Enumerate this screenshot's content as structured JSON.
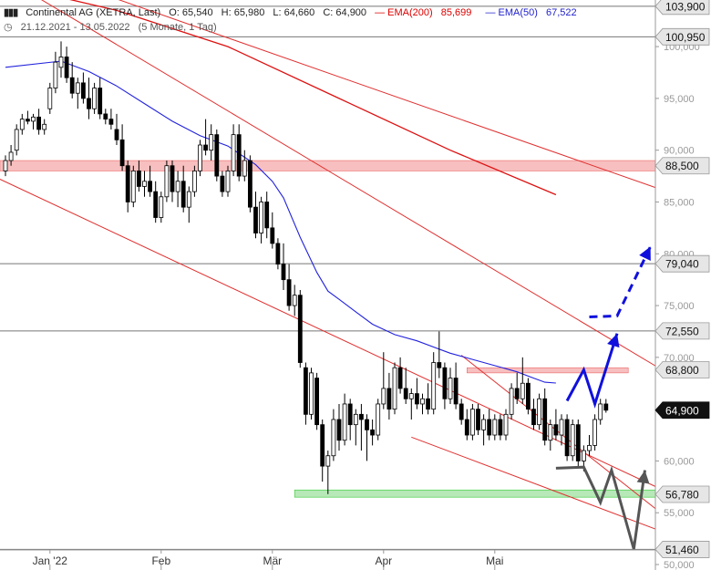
{
  "header": {
    "instrument": "Continental AG (XETRA, Last)",
    "open": "O: 65,540",
    "high": "H: 65,980",
    "low": "L: 64,660",
    "close": "C: 64,900",
    "ema200_label": "EMA(200)",
    "ema200_value": "85,699",
    "ema50_label": "EMA(50)",
    "ema50_value": "67,522",
    "date_range": "21.12.2021 - 13.05.2022",
    "period": "(5 Monate, 1 Tag)"
  },
  "colors": {
    "ema200": "#dd1111",
    "ema50": "#2222dd",
    "trendline": "#e03030",
    "resistance_zone": "#f4aaaa",
    "support_zone": "#9fe09f",
    "projection_bull": "#1010dd",
    "projection_bear": "#555555"
  },
  "chart_data": {
    "type": "candlestick",
    "ylim": [
      50000,
      104500
    ],
    "y_ticks": [
      "50,000",
      "55,000",
      "60,000",
      "65,000",
      "70,000",
      "75,000",
      "80,000",
      "85,000",
      "90,000",
      "95,000",
      "100,000"
    ],
    "y_tick_values": [
      50000,
      55000,
      60000,
      65000,
      70000,
      75000,
      80000,
      85000,
      90000,
      95000,
      100000
    ],
    "x_ticks": [
      "Jan '22",
      "Feb",
      "Mär",
      "Apr",
      "Mai"
    ],
    "x_tick_index": [
      8,
      28,
      48,
      68,
      88
    ],
    "horizontal_levels": [
      {
        "value": 103900,
        "label": "103,900"
      },
      {
        "value": 100950,
        "label": "100,950"
      },
      {
        "value": 88500,
        "label": "88,500",
        "zone": "resistance"
      },
      {
        "value": 79040,
        "label": "79,040"
      },
      {
        "value": 72550,
        "label": "72,550"
      },
      {
        "value": 68800,
        "label": "68,800",
        "zone": "resistance"
      },
      {
        "value": 64900,
        "label": "64,900",
        "current": true
      },
      {
        "value": 56780,
        "label": "56,780",
        "zone": "support"
      },
      {
        "value": 51460,
        "label": "51,460"
      }
    ],
    "candles": [
      [
        88.0,
        89.5,
        87.5,
        89.0
      ],
      [
        89.0,
        90.5,
        88.5,
        89.8
      ],
      [
        90.0,
        92.5,
        89.5,
        92.0
      ],
      [
        92.0,
        93.5,
        91.5,
        93.0
      ],
      [
        93.0,
        93.8,
        92.5,
        92.8
      ],
      [
        92.8,
        93.5,
        92.0,
        93.2
      ],
      [
        93.2,
        94.0,
        91.5,
        92.0
      ],
      [
        92.0,
        93.0,
        91.5,
        92.5
      ],
      [
        94.0,
        96.5,
        93.5,
        96.0
      ],
      [
        96.0,
        99.5,
        95.5,
        98.5
      ],
      [
        98.0,
        100.5,
        97.0,
        99.0
      ],
      [
        99.0,
        100.0,
        96.5,
        97.0
      ],
      [
        97.0,
        98.5,
        95.0,
        95.5
      ],
      [
        95.5,
        97.0,
        94.0,
        96.5
      ],
      [
        96.5,
        97.5,
        94.5,
        95.0
      ],
      [
        95.0,
        97.0,
        93.0,
        94.0
      ],
      [
        94.0,
        96.5,
        93.5,
        96.0
      ],
      [
        96.0,
        97.0,
        93.0,
        93.5
      ],
      [
        93.5,
        94.0,
        92.5,
        93.0
      ],
      [
        93.0,
        94.0,
        92.0,
        92.5
      ],
      [
        92.0,
        93.5,
        90.5,
        91.0
      ],
      [
        91.0,
        92.5,
        88.0,
        88.5
      ],
      [
        88.5,
        89.0,
        84.0,
        85.0
      ],
      [
        85.0,
        88.5,
        84.5,
        88.0
      ],
      [
        88.0,
        89.0,
        86.0,
        86.5
      ],
      [
        86.5,
        88.0,
        85.5,
        87.0
      ],
      [
        87.0,
        88.5,
        85.5,
        86.0
      ],
      [
        86.0,
        87.0,
        83.0,
        83.5
      ],
      [
        83.5,
        86.0,
        83.0,
        85.5
      ],
      [
        85.5,
        89.0,
        85.0,
        88.5
      ],
      [
        88.5,
        89.0,
        85.0,
        86.0
      ],
      [
        86.0,
        88.0,
        84.5,
        87.0
      ],
      [
        87.0,
        88.5,
        84.0,
        84.5
      ],
      [
        84.5,
        86.5,
        83.0,
        86.0
      ],
      [
        86.0,
        88.5,
        85.5,
        88.0
      ],
      [
        88.0,
        91.0,
        87.5,
        90.5
      ],
      [
        90.5,
        93.0,
        89.5,
        90.0
      ],
      [
        90.0,
        92.5,
        89.0,
        91.5
      ],
      [
        91.5,
        92.0,
        87.0,
        87.5
      ],
      [
        87.5,
        88.0,
        85.5,
        86.0
      ],
      [
        86.0,
        88.5,
        85.5,
        88.0
      ],
      [
        88.0,
        92.5,
        87.5,
        91.5
      ],
      [
        91.5,
        92.5,
        87.0,
        87.5
      ],
      [
        87.5,
        90.0,
        87.0,
        89.0
      ],
      [
        89.0,
        89.5,
        84.0,
        84.5
      ],
      [
        84.5,
        86.0,
        81.5,
        82.0
      ],
      [
        82.0,
        85.5,
        81.0,
        85.0
      ],
      [
        85.0,
        86.0,
        81.5,
        82.5
      ],
      [
        82.5,
        84.0,
        80.5,
        81.0
      ],
      [
        81.0,
        81.5,
        78.5,
        79.0
      ],
      [
        79.0,
        81.0,
        76.5,
        77.5
      ],
      [
        77.5,
        79.0,
        74.5,
        75.0
      ],
      [
        75.0,
        77.0,
        74.0,
        76.0
      ],
      [
        76.0,
        76.5,
        69.0,
        69.5
      ],
      [
        69.0,
        69.5,
        63.5,
        64.5
      ],
      [
        64.5,
        69.0,
        64.0,
        68.5
      ],
      [
        68.0,
        68.5,
        63.0,
        63.5
      ],
      [
        63.5,
        64.0,
        58.0,
        59.5
      ],
      [
        59.5,
        61.0,
        56.8,
        60.5
      ],
      [
        60.5,
        65.0,
        60.0,
        64.0
      ],
      [
        64.0,
        65.5,
        61.0,
        62.0
      ],
      [
        62.0,
        66.5,
        61.5,
        65.5
      ],
      [
        65.5,
        66.0,
        62.0,
        63.5
      ],
      [
        63.5,
        65.0,
        61.5,
        64.5
      ],
      [
        64.5,
        65.5,
        61.0,
        64.0
      ],
      [
        64.0,
        64.5,
        60.0,
        63.0
      ],
      [
        63.0,
        64.0,
        61.5,
        62.5
      ],
      [
        62.5,
        66.0,
        62.0,
        65.5
      ],
      [
        65.5,
        70.5,
        65.0,
        67.0
      ],
      [
        67.0,
        68.5,
        64.0,
        65.0
      ],
      [
        65.0,
        69.5,
        64.5,
        69.0
      ],
      [
        69.0,
        70.0,
        66.5,
        67.0
      ],
      [
        67.0,
        69.0,
        65.5,
        66.0
      ],
      [
        66.0,
        67.0,
        64.0,
        66.5
      ],
      [
        66.5,
        68.0,
        65.0,
        65.5
      ],
      [
        65.5,
        66.5,
        64.5,
        66.0
      ],
      [
        66.0,
        67.5,
        64.5,
        65.0
      ],
      [
        65.0,
        70.5,
        64.5,
        69.5
      ],
      [
        69.5,
        72.5,
        68.0,
        69.0
      ],
      [
        69.0,
        69.5,
        65.0,
        66.0
      ],
      [
        66.0,
        69.0,
        65.5,
        68.0
      ],
      [
        68.0,
        69.5,
        65.0,
        65.5
      ],
      [
        65.5,
        66.0,
        63.5,
        64.0
      ],
      [
        64.0,
        65.0,
        62.0,
        62.5
      ],
      [
        62.5,
        65.5,
        62.0,
        65.0
      ],
      [
        65.0,
        65.5,
        62.5,
        63.0
      ],
      [
        63.0,
        64.5,
        61.5,
        64.0
      ],
      [
        64.0,
        65.0,
        62.0,
        62.5
      ],
      [
        62.5,
        64.5,
        62.0,
        64.0
      ],
      [
        64.0,
        64.5,
        62.0,
        62.5
      ],
      [
        62.5,
        65.0,
        62.0,
        64.5
      ],
      [
        64.5,
        67.5,
        64.0,
        67.0
      ],
      [
        67.0,
        68.5,
        65.5,
        66.0
      ],
      [
        66.0,
        70.0,
        65.5,
        67.5
      ],
      [
        67.5,
        68.0,
        64.5,
        65.0
      ],
      [
        65.0,
        66.0,
        63.0,
        63.5
      ],
      [
        63.5,
        66.5,
        63.0,
        66.0
      ],
      [
        66.0,
        67.0,
        61.5,
        62.0
      ],
      [
        62.0,
        64.0,
        61.0,
        63.5
      ],
      [
        63.5,
        65.0,
        62.0,
        62.5
      ],
      [
        62.5,
        64.5,
        61.5,
        64.0
      ],
      [
        64.0,
        64.5,
        60.0,
        60.5
      ],
      [
        60.5,
        64.0,
        60.0,
        63.5
      ],
      [
        63.5,
        64.0,
        59.5,
        60.0
      ],
      [
        60.0,
        61.5,
        59.0,
        61.0
      ],
      [
        61.0,
        62.5,
        60.5,
        61.5
      ],
      [
        61.5,
        64.5,
        61.0,
        64.0
      ],
      [
        64.0,
        66.0,
        63.5,
        65.5
      ],
      [
        65.5,
        65.98,
        64.66,
        64.9
      ]
    ],
    "ema50": [
      [
        0,
        98.0
      ],
      [
        10,
        98.6
      ],
      [
        15,
        97.6
      ],
      [
        20,
        96.2
      ],
      [
        25,
        94.5
      ],
      [
        30,
        92.8
      ],
      [
        35,
        91.4
      ],
      [
        40,
        90.4
      ],
      [
        45,
        88.6
      ],
      [
        48,
        87.0
      ],
      [
        50,
        85.4
      ],
      [
        53,
        81.6
      ],
      [
        56,
        78.2
      ],
      [
        58,
        76.4
      ],
      [
        60,
        75.6
      ],
      [
        63,
        74.4
      ],
      [
        66,
        73.2
      ],
      [
        70,
        72.2
      ],
      [
        74,
        71.6
      ],
      [
        78,
        70.8
      ],
      [
        80,
        70.4
      ],
      [
        84,
        69.8
      ],
      [
        88,
        69.2
      ],
      [
        92,
        68.6
      ],
      [
        95,
        68.0
      ],
      [
        97,
        67.6
      ],
      [
        99,
        67.52
      ]
    ],
    "ema200": [
      [
        0,
        106.0
      ],
      [
        20,
        103.5
      ],
      [
        40,
        100.0
      ],
      [
        60,
        95.0
      ],
      [
        80,
        90.0
      ],
      [
        99,
        85.7
      ]
    ],
    "trendlines": [
      {
        "p1": [
          -1,
          87.2
        ],
        "p2": [
          119,
          57.0
        ]
      },
      {
        "p1": [
          5,
          105.0
        ],
        "p2": [
          119,
          68.5
        ]
      },
      {
        "p1": [
          20,
          104.6
        ],
        "p2": [
          119,
          86.0
        ]
      },
      {
        "p1": [
          82,
          70.2
        ],
        "p2": [
          119,
          54.5
        ]
      },
      {
        "p1": [
          73,
          62.3
        ],
        "p2": [
          119,
          53.0
        ]
      }
    ],
    "projection_bull_solid": [
      [
        101,
        65.8
      ],
      [
        104,
        68.8
      ],
      [
        106,
        65.5
      ],
      [
        110,
        72.3
      ]
    ],
    "projection_bull_dashed": [
      [
        105,
        73.9
      ],
      [
        110,
        74.0
      ],
      [
        116,
        80.7
      ]
    ],
    "projection_bear": [
      [
        99,
        59.3
      ],
      [
        104,
        59.4
      ],
      [
        107,
        56.0
      ],
      [
        109,
        59.1
      ],
      [
        113,
        51.5
      ],
      [
        115,
        59.1
      ]
    ],
    "zones": [
      {
        "from": 88.0,
        "to": 89.0,
        "x_start": -1,
        "x_end": 119,
        "kind": "resistance"
      },
      {
        "from": 68.5,
        "to": 69.0,
        "x_start": 83,
        "x_end": 112,
        "kind": "resistance"
      },
      {
        "from": 56.5,
        "to": 57.2,
        "x_start": 52,
        "x_end": 119,
        "kind": "support"
      }
    ]
  }
}
